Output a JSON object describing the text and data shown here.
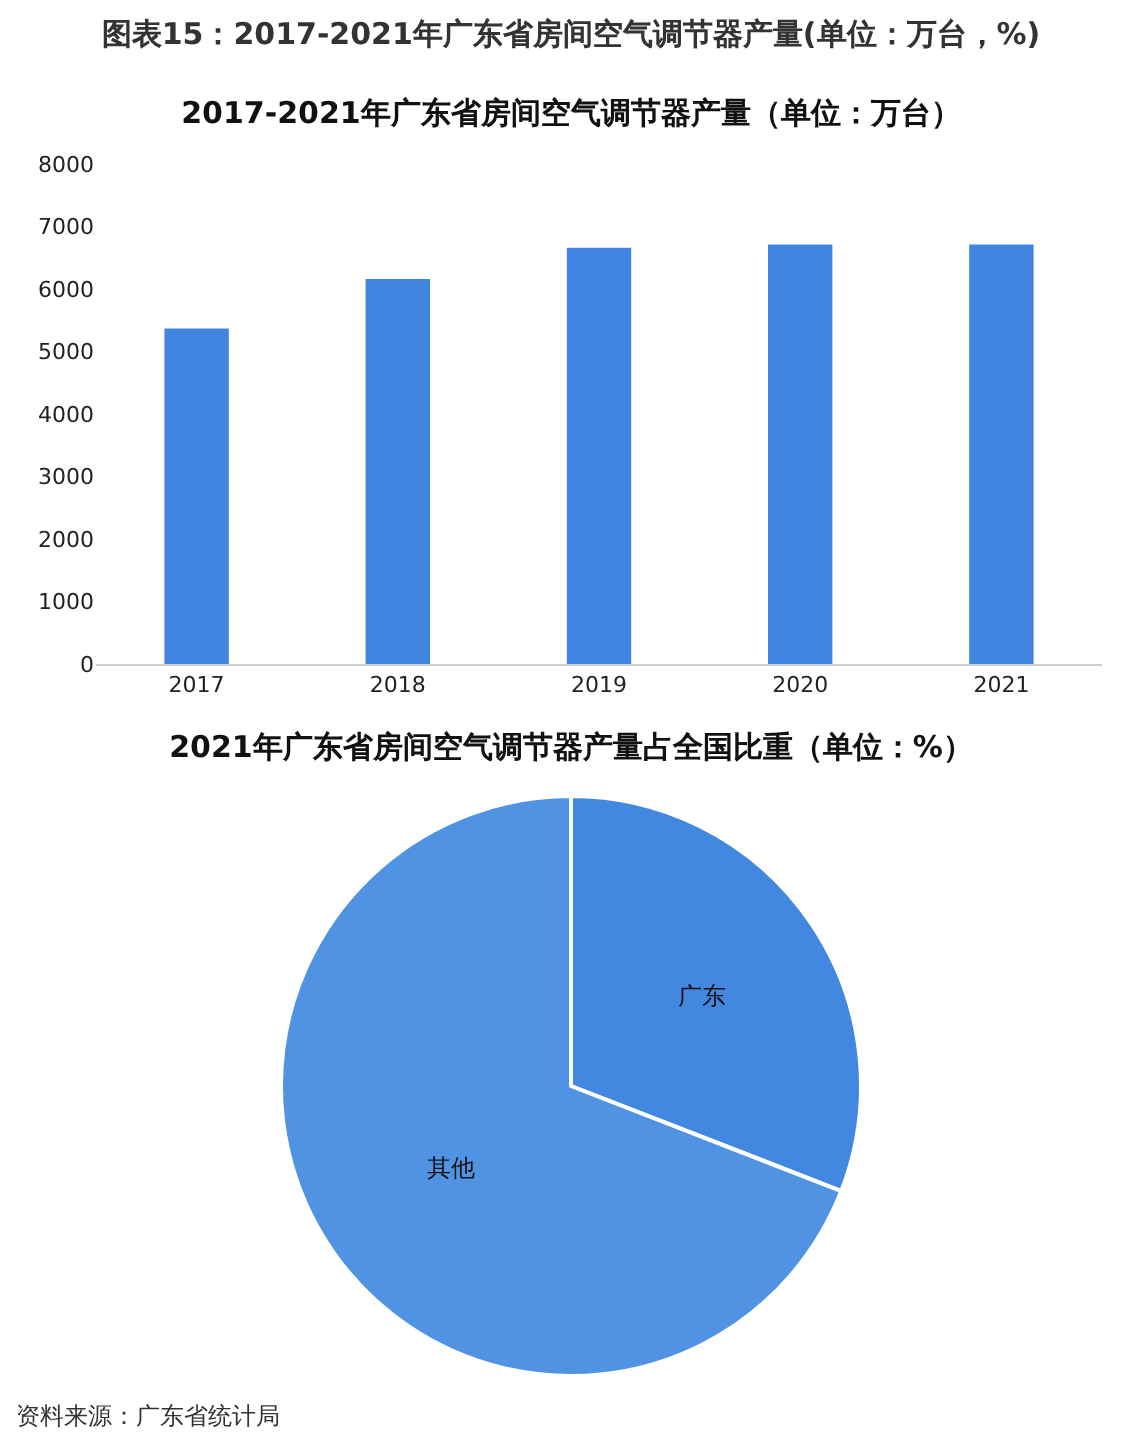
{
  "chart_data": [
    {
      "type": "bar",
      "title": "图表15：2017-2021年广东省房间空气调节器产量(单位：万台，%)",
      "subtitle": "2017-2021年广东省房间空气调节器产量（单位：万台）",
      "categories": [
        "2017",
        "2018",
        "2019",
        "2020",
        "2021"
      ],
      "values": [
        5370,
        6160,
        6660,
        6710,
        6710
      ],
      "color": "#4285e0",
      "ylim": [
        0,
        8000
      ],
      "yticks": [
        0,
        1000,
        2000,
        3000,
        4000,
        5000,
        6000,
        7000,
        8000
      ],
      "grid": false,
      "legend": false
    },
    {
      "type": "pie",
      "title": "2021年广东省房间空气调节器产量占全国比重（单位：%）",
      "categories": [
        "广东",
        "其他"
      ],
      "values": [
        30.9,
        69.1
      ],
      "colors": [
        "#4287e0",
        "#5193e3"
      ],
      "legend": false,
      "annotations": [
        "资料来源：广东省统计局"
      ]
    }
  ]
}
